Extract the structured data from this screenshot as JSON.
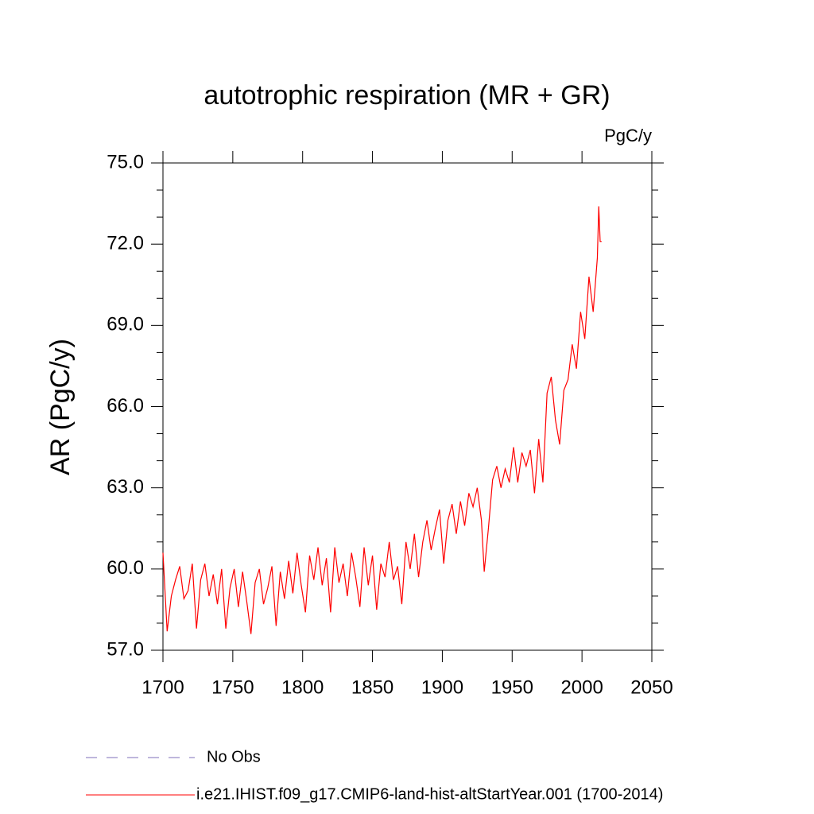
{
  "chart_data": {
    "type": "line",
    "title": "autotrophic respiration (MR + GR)",
    "units": "PgC/y",
    "ylabel": "AR  (PgC/y)",
    "x": [
      1700,
      1703,
      1706,
      1709,
      1712,
      1715,
      1718,
      1721,
      1724,
      1727,
      1730,
      1733,
      1736,
      1739,
      1742,
      1745,
      1748,
      1751,
      1754,
      1757,
      1760,
      1763,
      1766,
      1769,
      1772,
      1775,
      1778,
      1781,
      1784,
      1787,
      1790,
      1793,
      1796,
      1799,
      1802,
      1805,
      1808,
      1811,
      1814,
      1817,
      1820,
      1823,
      1826,
      1829,
      1832,
      1835,
      1838,
      1841,
      1844,
      1847,
      1850,
      1853,
      1856,
      1859,
      1862,
      1865,
      1868,
      1871,
      1874,
      1877,
      1880,
      1883,
      1886,
      1889,
      1892,
      1895,
      1898,
      1901,
      1904,
      1907,
      1910,
      1913,
      1916,
      1919,
      1922,
      1925,
      1928,
      1930,
      1933,
      1936,
      1939,
      1942,
      1945,
      1948,
      1951,
      1954,
      1957,
      1960,
      1963,
      1966,
      1969,
      1972,
      1975,
      1978,
      1981,
      1984,
      1987,
      1990,
      1993,
      1996,
      1999,
      2002,
      2005,
      2008,
      2011,
      2012,
      2013,
      2014
    ],
    "series": [
      {
        "name": "i.e21.IHIST.f09_g17.CMIP6-land-hist-altStartYear.001 (1700-2014)",
        "color": "#ff0000",
        "values": [
          60.6,
          57.7,
          59.0,
          59.6,
          60.1,
          58.9,
          59.2,
          60.2,
          57.8,
          59.6,
          60.2,
          59.0,
          59.8,
          58.7,
          60.0,
          57.8,
          59.3,
          60.0,
          58.6,
          59.9,
          58.8,
          57.6,
          59.5,
          60.0,
          58.7,
          59.3,
          60.1,
          57.9,
          59.9,
          58.9,
          60.3,
          59.1,
          60.6,
          59.4,
          58.4,
          60.5,
          59.6,
          60.8,
          59.4,
          60.4,
          58.4,
          60.8,
          59.5,
          60.2,
          59.0,
          60.6,
          59.7,
          58.6,
          60.8,
          59.4,
          60.5,
          58.5,
          60.2,
          59.7,
          61.0,
          59.6,
          60.1,
          58.7,
          61.0,
          60.0,
          61.3,
          59.7,
          61.0,
          61.8,
          60.7,
          61.5,
          62.2,
          60.2,
          61.8,
          62.4,
          61.3,
          62.5,
          61.6,
          62.8,
          62.3,
          63.0,
          61.8,
          59.9,
          61.5,
          63.3,
          63.8,
          63.0,
          63.7,
          63.2,
          64.5,
          63.2,
          64.3,
          63.8,
          64.4,
          62.8,
          64.8,
          63.2,
          66.5,
          67.1,
          65.5,
          64.6,
          66.6,
          67.0,
          68.3,
          67.4,
          69.5,
          68.5,
          70.8,
          69.5,
          71.5,
          73.4,
          72.1,
          72.1
        ]
      }
    ],
    "legend_entries": [
      {
        "label": "No Obs",
        "color": "#7f6fb8",
        "style": "dashed"
      }
    ],
    "xlim": [
      1700,
      2050
    ],
    "xticks": [
      1700,
      1750,
      1800,
      1850,
      1900,
      1950,
      2000,
      2050
    ],
    "ylim": [
      57,
      75
    ],
    "yticks": [
      {
        "value": 57,
        "label": "57.0"
      },
      {
        "value": 60,
        "label": "60.0"
      },
      {
        "value": 63,
        "label": "63.0"
      },
      {
        "value": 66,
        "label": "66.0"
      },
      {
        "value": 69,
        "label": "69.0"
      },
      {
        "value": 72,
        "label": "72.0"
      },
      {
        "value": 75,
        "label": "75.0"
      }
    ],
    "yminorticks": [
      58,
      59,
      61,
      62,
      64,
      65,
      67,
      68,
      70,
      71,
      73,
      74
    ]
  }
}
